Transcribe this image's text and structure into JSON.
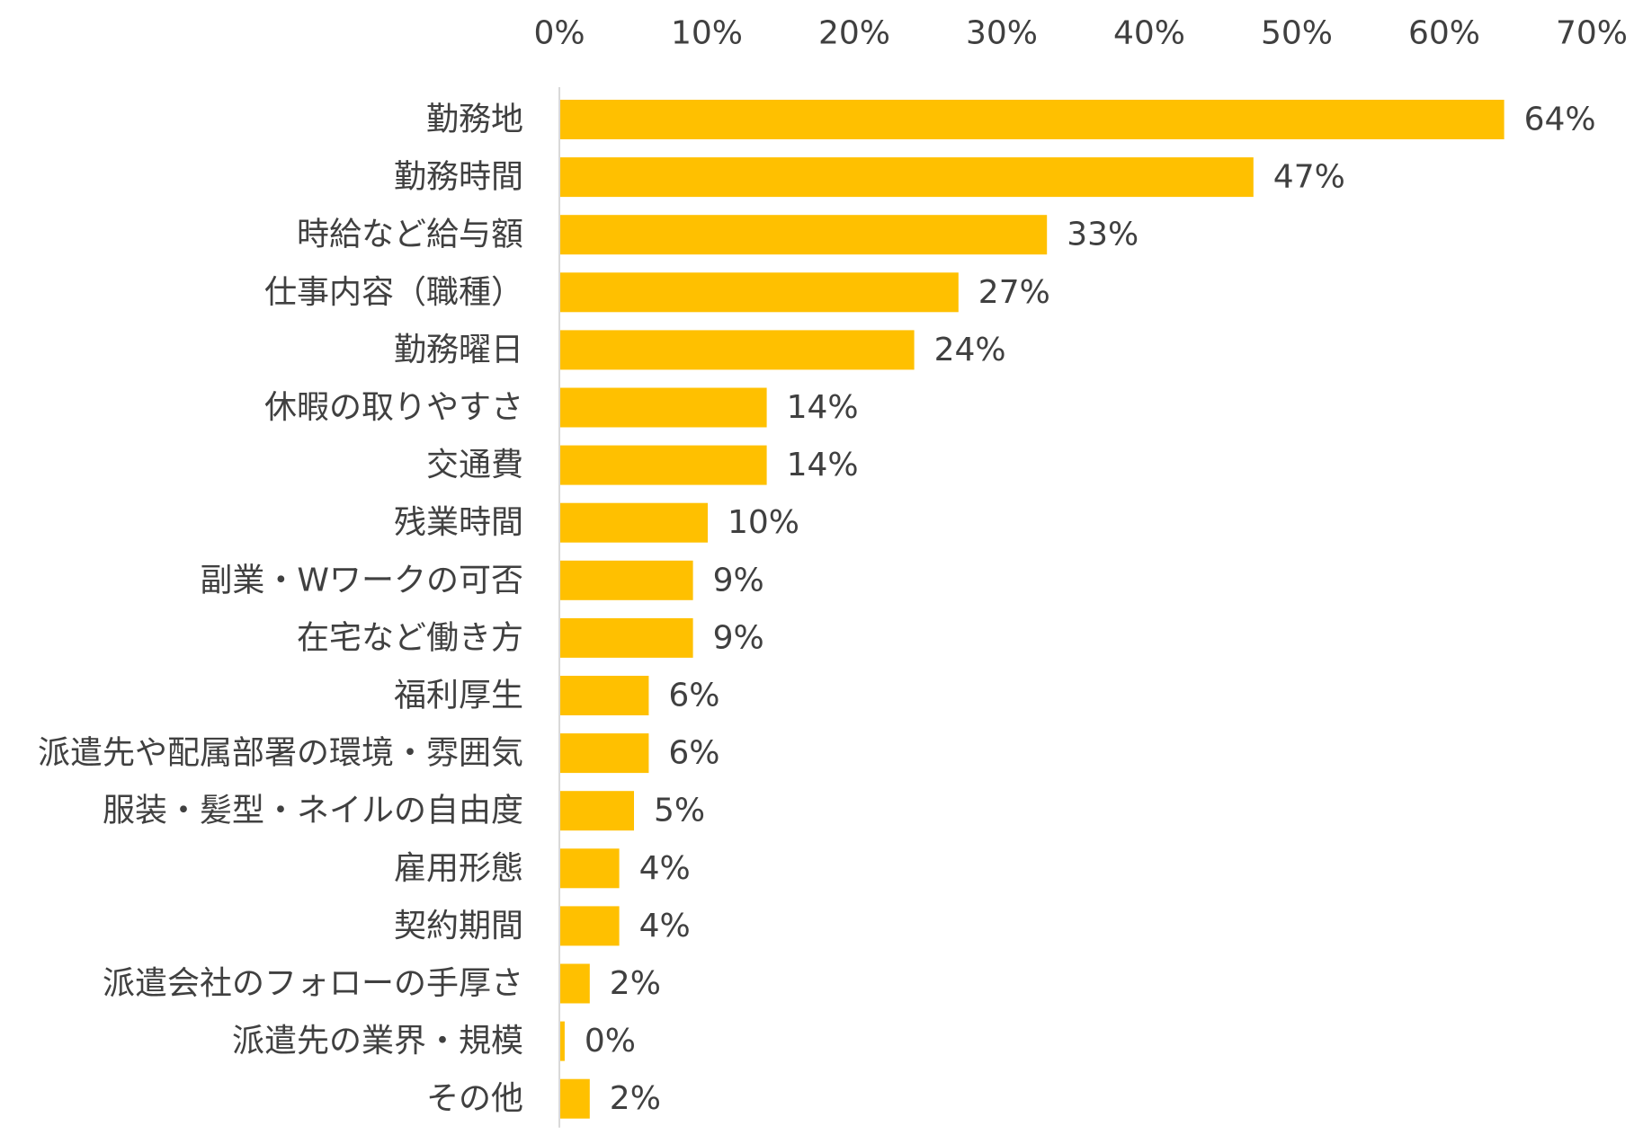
{
  "chart_data": {
    "type": "bar",
    "orientation": "horizontal",
    "title": "",
    "xlabel": "",
    "ylabel": "",
    "xlim": [
      0,
      70
    ],
    "ticks": [
      "0%",
      "10%",
      "20%",
      "30%",
      "40%",
      "50%",
      "60%",
      "70%"
    ],
    "tick_values": [
      0,
      10,
      20,
      30,
      40,
      50,
      60,
      70
    ],
    "axis_position": "top",
    "grid": false,
    "legend": "none",
    "bar_color": "#FFC000",
    "axis_color": "#D9D9D9",
    "categories": [
      "勤務地",
      "勤務時間",
      "時給など給与額",
      "仕事内容（職種）",
      "勤務曜日",
      "休暇の取りやすさ",
      "交通費",
      "残業時間",
      "副業・Wワークの可否",
      "在宅など働き方",
      "福利厚生",
      "派遣先や配属部署の環境・雰囲気",
      "服装・髪型・ネイルの自由度",
      "雇用形態",
      "契約期間",
      "派遣会社のフォローの手厚さ",
      "派遣先の業界・規模",
      "その他"
    ],
    "values": [
      64,
      47,
      33,
      27,
      24,
      14,
      14,
      10,
      9,
      9,
      6,
      6,
      5,
      4,
      4,
      2,
      0.3,
      2
    ],
    "value_labels": [
      "64%",
      "47%",
      "33%",
      "27%",
      "24%",
      "14%",
      "14%",
      "10%",
      "9%",
      "9%",
      "6%",
      "6%",
      "5%",
      "4%",
      "4%",
      "2%",
      "0%",
      "2%"
    ]
  }
}
